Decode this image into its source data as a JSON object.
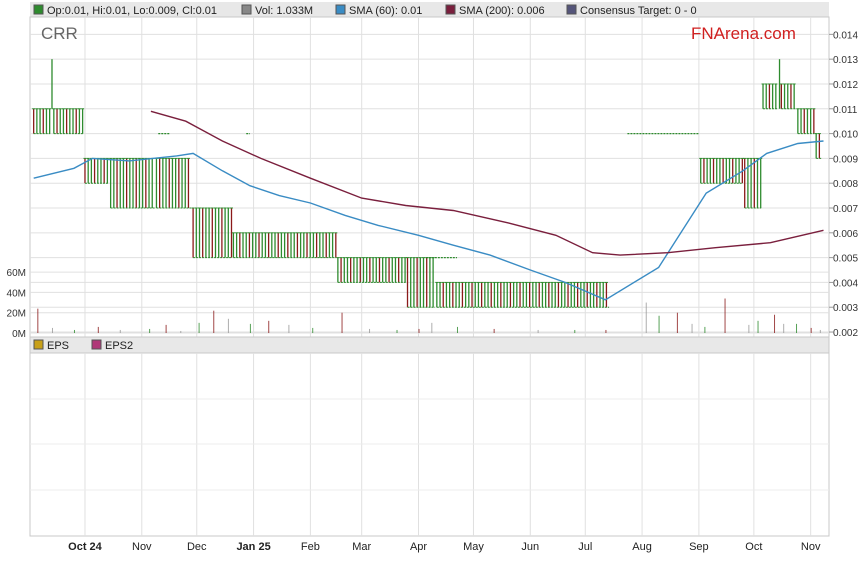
{
  "legend": {
    "ohlc": "Op:0.01, Hi:0.01, Lo:0.009, Cl:0.01",
    "vol": "Vol: 1.033M",
    "sma60": "SMA (60): 0.01",
    "sma200": "SMA (200): 0.006",
    "consensus": "Consensus Target: 0 - 0"
  },
  "legend2": {
    "eps": "EPS",
    "eps2": "EPS2"
  },
  "ticker": "CRR",
  "brand": {
    "fn": "FN",
    "arena": "Arena.com"
  },
  "colors": {
    "up": "#2e8b2e",
    "down": "#8b1a1a",
    "sma60": "#3a8cc4",
    "sma200": "#7a1f3d",
    "brand_red": "#d02020",
    "ticker": "#666666",
    "grid": "#e0e0e0",
    "eps": "#c8a018",
    "eps2": "#b03878",
    "consensus": "#55557a",
    "vol": "#888888"
  },
  "chart_data": {
    "type": "line",
    "price_axis": {
      "ticks": [
        "0.002",
        "0.003",
        "0.004",
        "0.005",
        "0.006",
        "0.007",
        "0.008",
        "0.009",
        "0.010",
        "0.011",
        "0.012",
        "0.013",
        "0.014"
      ],
      "ylim": [
        0.0018,
        0.0147
      ]
    },
    "volume_axis": {
      "ticks": [
        "0M",
        "20M",
        "40M",
        "60M"
      ],
      "ylim": [
        0,
        70
      ]
    },
    "x_ticks": [
      {
        "label": "Oct 24",
        "bold": true,
        "date": "2024-10-01"
      },
      {
        "label": "Nov",
        "bold": false,
        "date": "2024-11-01"
      },
      {
        "label": "Dec",
        "bold": false,
        "date": "2024-12-01"
      },
      {
        "label": "Jan 25",
        "bold": true,
        "date": "2025-01-01"
      },
      {
        "label": "Feb",
        "bold": false,
        "date": "2025-02-01"
      },
      {
        "label": "Mar",
        "bold": false,
        "date": "2025-03-01"
      },
      {
        "label": "Apr",
        "bold": false,
        "date": "2025-04-01"
      },
      {
        "label": "May",
        "bold": false,
        "date": "2025-05-01"
      },
      {
        "label": "Jun",
        "bold": false,
        "date": "2025-06-01"
      },
      {
        "label": "Jul",
        "bold": false,
        "date": "2025-07-01"
      },
      {
        "label": "Aug",
        "bold": false,
        "date": "2025-08-01"
      },
      {
        "label": "Sep",
        "bold": false,
        "date": "2025-09-01"
      },
      {
        "label": "Oct",
        "bold": false,
        "date": "2025-10-01"
      },
      {
        "label": "Nov",
        "bold": false,
        "date": "2025-11-01"
      }
    ],
    "price_segments": [
      {
        "start": "2024-09-03",
        "end": "2024-09-12",
        "low": 0.01,
        "high": 0.011,
        "mixed": true
      },
      {
        "start": "2024-09-13",
        "end": "2024-09-13",
        "low": 0.011,
        "high": 0.013,
        "mixed": false
      },
      {
        "start": "2024-09-14",
        "end": "2024-09-30",
        "low": 0.01,
        "high": 0.011,
        "mixed": true
      },
      {
        "start": "2024-10-01",
        "end": "2024-10-14",
        "low": 0.008,
        "high": 0.009,
        "mixed": true
      },
      {
        "start": "2024-10-15",
        "end": "2024-11-08",
        "low": 0.007,
        "high": 0.009,
        "mixed": true
      },
      {
        "start": "2024-11-09",
        "end": "2024-11-28",
        "low": 0.007,
        "high": 0.009,
        "mixed": true
      },
      {
        "start": "2024-11-29",
        "end": "2024-12-20",
        "low": 0.005,
        "high": 0.007,
        "mixed": true
      },
      {
        "start": "2024-12-21",
        "end": "2025-02-15",
        "low": 0.005,
        "high": 0.006,
        "mixed": true
      },
      {
        "start": "2025-02-16",
        "end": "2025-03-25",
        "low": 0.004,
        "high": 0.005,
        "mixed": true
      },
      {
        "start": "2025-03-26",
        "end": "2025-04-10",
        "low": 0.003,
        "high": 0.005,
        "mixed": true
      },
      {
        "start": "2025-04-11",
        "end": "2025-07-14",
        "low": 0.003,
        "high": 0.004,
        "mixed": true
      },
      {
        "start": "2025-09-02",
        "end": "2025-09-25",
        "low": 0.008,
        "high": 0.009,
        "mixed": true
      },
      {
        "start": "2025-09-26",
        "end": "2025-10-05",
        "low": 0.007,
        "high": 0.009,
        "mixed": true
      },
      {
        "start": "2025-10-06",
        "end": "2025-10-14",
        "low": 0.011,
        "high": 0.012,
        "mixed": true
      },
      {
        "start": "2025-10-15",
        "end": "2025-10-15",
        "low": 0.011,
        "high": 0.013,
        "mixed": false
      },
      {
        "start": "2025-10-16",
        "end": "2025-10-24",
        "low": 0.011,
        "high": 0.012,
        "mixed": true
      },
      {
        "start": "2025-10-25",
        "end": "2025-11-03",
        "low": 0.01,
        "high": 0.011,
        "mixed": true
      },
      {
        "start": "2025-11-04",
        "end": "2025-11-07",
        "low": 0.009,
        "high": 0.01,
        "mixed": true
      }
    ],
    "flat_ticks": [
      {
        "start": "2024-11-10",
        "end": "2024-11-16",
        "price": 0.01
      },
      {
        "start": "2024-12-28",
        "end": "2024-12-30",
        "price": 0.01
      },
      {
        "start": "2025-04-05",
        "end": "2025-04-22",
        "price": 0.005
      },
      {
        "start": "2025-07-24",
        "end": "2025-09-01",
        "price": 0.01
      }
    ],
    "series": [
      {
        "name": "SMA (60)",
        "x": [
          "2024-09-03",
          "2024-09-25",
          "2024-10-05",
          "2024-10-25",
          "2024-11-20",
          "2024-11-29",
          "2024-12-15",
          "2024-12-30",
          "2025-01-15",
          "2025-02-01",
          "2025-02-20",
          "2025-03-10",
          "2025-04-01",
          "2025-04-20",
          "2025-05-10",
          "2025-06-01",
          "2025-06-20",
          "2025-07-12",
          "2025-08-10",
          "2025-09-05",
          "2025-09-25",
          "2025-10-08",
          "2025-10-25",
          "2025-11-08"
        ],
        "values": [
          0.0082,
          0.0086,
          0.009,
          0.0089,
          0.0091,
          0.0092,
          0.0085,
          0.0079,
          0.0075,
          0.0072,
          0.0067,
          0.0063,
          0.0059,
          0.0055,
          0.0051,
          0.0045,
          0.004,
          0.0033,
          0.0046,
          0.0076,
          0.0085,
          0.0092,
          0.0096,
          0.0097
        ]
      },
      {
        "name": "SMA (200)",
        "x": [
          "2024-11-06",
          "2024-11-25",
          "2024-12-15",
          "2025-01-05",
          "2025-02-01",
          "2025-03-01",
          "2025-03-25",
          "2025-04-20",
          "2025-05-20",
          "2025-06-15",
          "2025-07-05",
          "2025-07-20",
          "2025-08-15",
          "2025-09-10",
          "2025-10-10",
          "2025-11-08"
        ],
        "values": [
          0.0109,
          0.0105,
          0.0097,
          0.009,
          0.0082,
          0.0074,
          0.0071,
          0.0069,
          0.0064,
          0.0059,
          0.0052,
          0.0051,
          0.0052,
          0.0054,
          0.0056,
          0.0061
        ]
      }
    ],
    "volume": {
      "x": [
        "2024-09-05",
        "2024-09-13",
        "2024-09-25",
        "2024-10-08",
        "2024-10-20",
        "2024-11-05",
        "2024-11-14",
        "2024-11-22",
        "2024-12-02",
        "2024-12-10",
        "2024-12-18",
        "2024-12-30",
        "2025-01-09",
        "2025-01-20",
        "2025-02-02",
        "2025-02-18",
        "2025-03-05",
        "2025-03-20",
        "2025-04-01",
        "2025-04-08",
        "2025-04-22",
        "2025-05-12",
        "2025-06-05",
        "2025-06-25",
        "2025-07-12",
        "2025-08-03",
        "2025-08-10",
        "2025-08-20",
        "2025-08-28",
        "2025-09-04",
        "2025-09-15",
        "2025-09-28",
        "2025-10-03",
        "2025-10-12",
        "2025-10-17",
        "2025-10-24",
        "2025-11-01",
        "2025-11-06"
      ],
      "values": [
        24,
        5,
        3,
        6,
        3,
        4,
        8,
        2,
        10,
        22,
        14,
        9,
        12,
        8,
        5,
        20,
        4,
        3,
        4,
        10,
        6,
        4,
        3,
        3,
        3,
        30,
        17,
        20,
        9,
        6,
        34,
        8,
        12,
        18,
        9,
        9,
        5,
        3
      ]
    },
    "lower_pane": {
      "series": [
        "EPS",
        "EPS2"
      ]
    }
  }
}
